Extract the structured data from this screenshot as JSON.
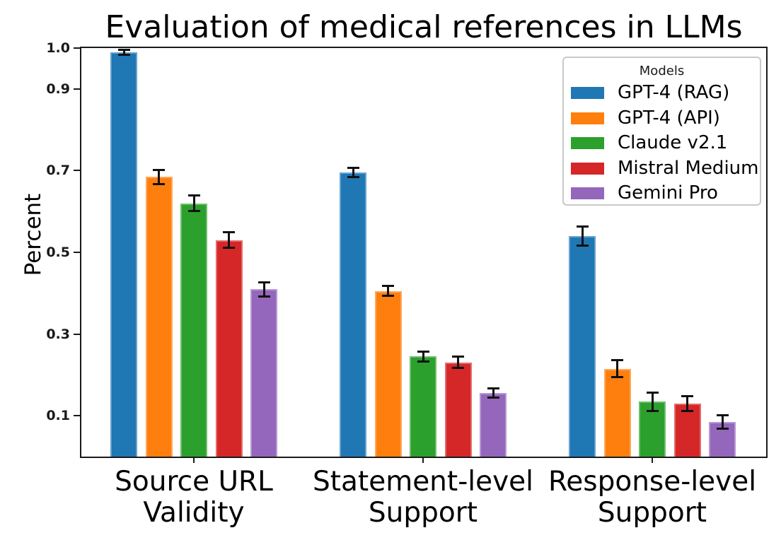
{
  "chart_data": {
    "type": "bar",
    "title": "Evaluation of medical references in LLMs",
    "xlabel": "",
    "ylabel": "Percent",
    "legend_title": "Models",
    "legend_position": "upper right",
    "grid": false,
    "error_bars": true,
    "ylim": [
      0,
      1.0
    ],
    "yticks": [
      0.1,
      0.3,
      0.5,
      0.7,
      0.9,
      1.0
    ],
    "categories": [
      [
        "Source URL",
        "Validity"
      ],
      [
        "Statement-level",
        "Support"
      ],
      [
        "Response-level",
        "Support"
      ]
    ],
    "series": [
      {
        "name": "GPT-4 (RAG)",
        "color": "#1f77b4",
        "values": [
          0.99,
          0.695,
          0.54
        ],
        "errors": [
          0.007,
          0.012,
          0.024
        ]
      },
      {
        "name": "GPT-4 (API)",
        "color": "#ff7f0e",
        "values": [
          0.685,
          0.405,
          0.215
        ],
        "errors": [
          0.018,
          0.013,
          0.022
        ]
      },
      {
        "name": "Claude v2.1",
        "color": "#2ca02c",
        "values": [
          0.62,
          0.245,
          0.135
        ],
        "errors": [
          0.02,
          0.013,
          0.023
        ]
      },
      {
        "name": "Mistral Medium",
        "color": "#d62728",
        "values": [
          0.53,
          0.23,
          0.13
        ],
        "errors": [
          0.02,
          0.015,
          0.019
        ]
      },
      {
        "name": "Gemini Pro",
        "color": "#9467bd",
        "values": [
          0.41,
          0.155,
          0.085
        ],
        "errors": [
          0.018,
          0.012,
          0.017
        ]
      }
    ],
    "axis_color": "#1a1a1a",
    "error_bar_color": "#111111",
    "background_color": "#ffffff"
  }
}
